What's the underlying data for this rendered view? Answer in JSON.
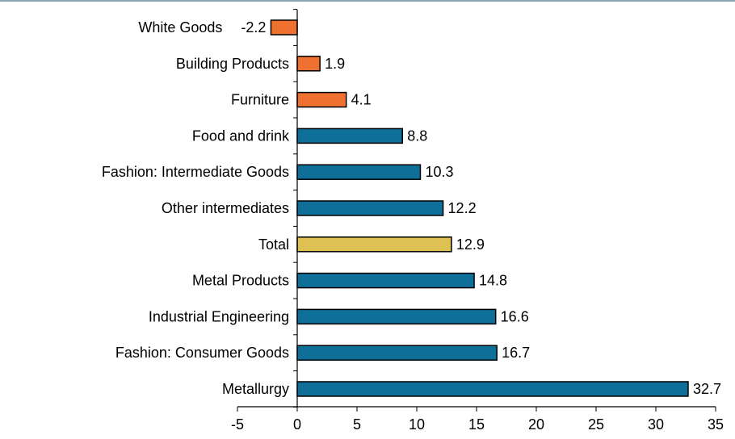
{
  "chart_data": {
    "type": "bar",
    "orientation": "horizontal",
    "categories": [
      "White Goods",
      "Building Products",
      "Furniture",
      "Food and drink",
      "Fashion: Intermediate Goods",
      "Other intermediates",
      "Total",
      "Metal Products",
      "Industrial Engineering",
      "Fashion: Consumer Goods",
      "Metallurgy"
    ],
    "values": [
      -2.2,
      1.9,
      4.1,
      8.8,
      10.3,
      12.2,
      12.9,
      14.8,
      16.6,
      16.7,
      32.7
    ],
    "value_labels": [
      "-2.2",
      "1.9",
      "4.1",
      "8.8",
      "10.3",
      "12.2",
      "12.9",
      "14.8",
      "16.6",
      "16.7",
      "32.7"
    ],
    "colors": [
      "#ee7130",
      "#ee7130",
      "#ee7130",
      "#0e6f98",
      "#0e6f98",
      "#0e6f98",
      "#ddc152",
      "#0e6f98",
      "#0e6f98",
      "#0e6f98",
      "#0e6f98"
    ],
    "bar_stroke": "#000000",
    "xlim": [
      -5,
      35
    ],
    "xticks": [
      -5,
      0,
      5,
      10,
      15,
      20,
      25,
      30,
      35
    ],
    "xtick_labels": [
      "-5",
      "0",
      "5",
      "10",
      "15",
      "20",
      "25",
      "30",
      "35"
    ],
    "title": "",
    "xlabel": "",
    "ylabel": "",
    "grid": false,
    "legend": "none"
  }
}
